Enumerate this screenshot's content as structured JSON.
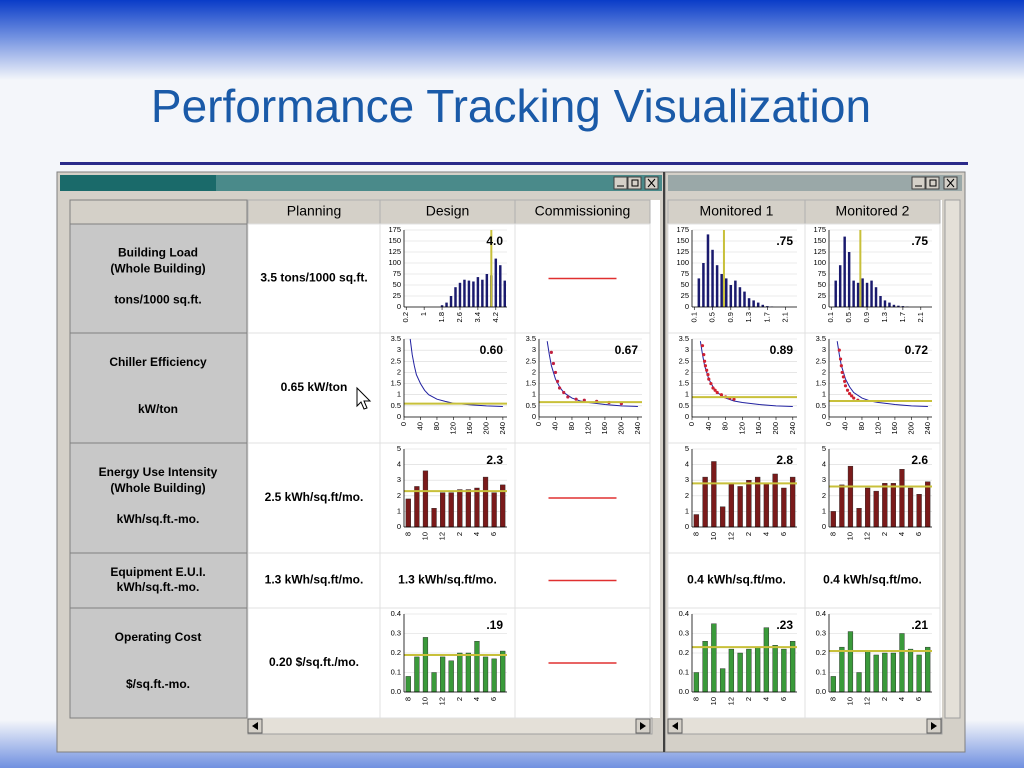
{
  "title": "Performance Tracking Visualization",
  "columns": [
    "Planning",
    "Design",
    "Commissioning",
    "Monitored 1",
    "Monitored 2"
  ],
  "rows": [
    {
      "name": [
        "Building Load",
        "(Whole Building)"
      ],
      "unit": "tons/1000 sq.ft.",
      "cells": [
        "3.5 tons/1000 sq.ft.",
        {
          "type": "bar",
          "color": "#1a1a6e",
          "marker_axis": "x",
          "marker_color": "#c8c03a",
          "xlim": [
            0.1,
            4.7
          ],
          "ylim": [
            0,
            175
          ],
          "yticks": [
            0,
            25,
            50,
            75,
            100,
            125,
            150,
            175
          ],
          "xticks": [
            0.2,
            1,
            1.8,
            2.6,
            3.4,
            4.2
          ],
          "x": [
            0.2,
            0.4,
            0.6,
            0.8,
            1.0,
            1.2,
            1.4,
            1.6,
            1.8,
            2.0,
            2.2,
            2.4,
            2.6,
            2.8,
            3.0,
            3.2,
            3.4,
            3.6,
            3.8,
            4.0,
            4.2,
            4.4,
            4.6
          ],
          "values": [
            0,
            0,
            0,
            0,
            0,
            0,
            0,
            0,
            4,
            10,
            25,
            45,
            55,
            62,
            60,
            58,
            68,
            62,
            75,
            72,
            110,
            95,
            60
          ],
          "marker": {
            "value": 4,
            "label": "4.0"
          }
        },
        null,
        {
          "type": "bar",
          "color": "#1a1a6e",
          "marker_axis": "x",
          "marker_color": "#c8c03a",
          "xlim": [
            0.05,
            2.35
          ],
          "ylim": [
            0,
            175
          ],
          "yticks": [
            0,
            25,
            50,
            75,
            100,
            125,
            150,
            175
          ],
          "xticks": [
            0.1,
            0.5,
            0.9,
            1.3,
            1.7,
            2.1
          ],
          "x": [
            0.1,
            0.2,
            0.3,
            0.4,
            0.5,
            0.6,
            0.7,
            0.8,
            0.9,
            1.0,
            1.1,
            1.2,
            1.3,
            1.4,
            1.5,
            1.6,
            1.7,
            1.8,
            1.9,
            2.0,
            2.1,
            2.2,
            2.3
          ],
          "values": [
            0,
            65,
            100,
            165,
            130,
            95,
            75,
            65,
            50,
            60,
            45,
            35,
            20,
            15,
            10,
            5,
            2,
            1,
            0,
            0,
            0,
            0,
            0
          ],
          "marker": {
            "value": 0.75,
            "label": ".75"
          }
        },
        {
          "type": "bar",
          "color": "#1a1a6e",
          "marker_axis": "x",
          "marker_color": "#c8c03a",
          "xlim": [
            0.05,
            2.35
          ],
          "ylim": [
            0,
            175
          ],
          "yticks": [
            0,
            25,
            50,
            75,
            100,
            125,
            150,
            175
          ],
          "xticks": [
            0.1,
            0.5,
            0.9,
            1.3,
            1.7,
            2.1
          ],
          "x": [
            0.1,
            0.2,
            0.3,
            0.4,
            0.5,
            0.6,
            0.7,
            0.8,
            0.9,
            1.0,
            1.1,
            1.2,
            1.3,
            1.4,
            1.5,
            1.6,
            1.7,
            1.8,
            1.9,
            2.0,
            2.1,
            2.2,
            2.3
          ],
          "values": [
            0,
            60,
            95,
            160,
            125,
            60,
            55,
            65,
            55,
            60,
            45,
            25,
            15,
            10,
            5,
            3,
            2,
            1,
            0,
            0,
            0,
            0,
            0
          ],
          "marker": {
            "value": 0.75,
            "label": ".75"
          }
        }
      ]
    },
    {
      "name": [
        "Chiller Efficiency"
      ],
      "unit": "kW/ton",
      "cells": [
        "0.65 kW/ton",
        {
          "type": "line",
          "color": "#2020a0",
          "marker_axis": "y",
          "marker_color": "#c8c03a",
          "xlim": [
            0,
            250
          ],
          "ylim": [
            0,
            3.5
          ],
          "yticks": [
            0,
            0.5,
            1,
            1.5,
            2,
            2.5,
            3,
            3.5
          ],
          "xticks": [
            0,
            40,
            80,
            120,
            160,
            200,
            240
          ],
          "x": [
            15,
            20,
            25,
            30,
            40,
            50,
            60,
            80,
            100,
            120,
            160,
            200,
            240
          ],
          "values": [
            3.5,
            2.8,
            2.3,
            1.9,
            1.5,
            1.2,
            1.0,
            0.8,
            0.7,
            0.62,
            0.55,
            0.5,
            0.47
          ],
          "marker": {
            "value": 0.6,
            "label": "0.60"
          }
        },
        {
          "type": "line",
          "color": "#2020a0",
          "points_color": "#c02040",
          "marker_axis": "y",
          "marker_color": "#c8c03a",
          "xlim": [
            0,
            250
          ],
          "ylim": [
            0,
            3.5
          ],
          "yticks": [
            0,
            0.5,
            1,
            1.5,
            2,
            2.5,
            3,
            3.5
          ],
          "xticks": [
            0,
            40,
            80,
            120,
            160,
            200,
            240
          ],
          "x": [
            20,
            25,
            30,
            40,
            50,
            60,
            80,
            100,
            120,
            160,
            200,
            240
          ],
          "values": [
            3.4,
            2.8,
            2.3,
            1.7,
            1.35,
            1.1,
            0.85,
            0.72,
            0.65,
            0.56,
            0.5,
            0.47
          ],
          "points_x": [
            30,
            35,
            40,
            45,
            50,
            60,
            70,
            90,
            110,
            140,
            170,
            200
          ],
          "points_y": [
            2.9,
            2.4,
            2.0,
            1.6,
            1.3,
            1.1,
            0.9,
            0.8,
            0.75,
            0.7,
            0.65,
            0.6
          ],
          "marker": 0.67
        },
        {
          "type": "line",
          "color": "#2020a0",
          "points_color": "#d02030",
          "marker_axis": "y",
          "marker_color": "#c8c03a",
          "xlim": [
            0,
            250
          ],
          "ylim": [
            0,
            3.5
          ],
          "yticks": [
            0,
            0.5,
            1,
            1.5,
            2,
            2.5,
            3,
            3.5
          ],
          "xticks": [
            0,
            40,
            80,
            120,
            160,
            200,
            240
          ],
          "x": [
            20,
            25,
            30,
            40,
            50,
            60,
            80,
            100,
            120,
            160,
            200,
            240
          ],
          "values": [
            3.4,
            2.8,
            2.3,
            1.7,
            1.35,
            1.1,
            0.85,
            0.72,
            0.65,
            0.56,
            0.5,
            0.47
          ],
          "points_x": [
            25,
            28,
            30,
            32,
            35,
            38,
            40,
            45,
            50,
            55,
            60,
            70,
            80,
            90,
            100
          ],
          "points_y": [
            3.2,
            2.8,
            2.5,
            2.3,
            2.1,
            1.9,
            1.7,
            1.5,
            1.3,
            1.2,
            1.1,
            1.0,
            0.9,
            0.85,
            0.8
          ],
          "marker": 0.89
        },
        {
          "type": "line",
          "color": "#2020a0",
          "points_color": "#d02030",
          "marker_axis": "y",
          "marker_color": "#c8c03a",
          "xlim": [
            0,
            250
          ],
          "ylim": [
            0,
            3.5
          ],
          "yticks": [
            0,
            0.5,
            1,
            1.5,
            2,
            2.5,
            3,
            3.5
          ],
          "xticks": [
            0,
            40,
            80,
            120,
            160,
            200,
            240
          ],
          "x": [
            20,
            25,
            30,
            40,
            50,
            60,
            80,
            100,
            120,
            160,
            200,
            240
          ],
          "values": [
            3.4,
            2.8,
            2.3,
            1.7,
            1.35,
            1.1,
            0.85,
            0.72,
            0.65,
            0.56,
            0.5,
            0.47
          ],
          "points_x": [
            25,
            28,
            30,
            32,
            35,
            38,
            40,
            45,
            50,
            55,
            60,
            70
          ],
          "points_y": [
            3.0,
            2.6,
            2.3,
            2.0,
            1.8,
            1.6,
            1.4,
            1.2,
            1.05,
            0.95,
            0.85,
            0.75
          ],
          "marker": 0.72
        }
      ]
    },
    {
      "name": [
        "Energy Use Intensity",
        "(Whole Building)"
      ],
      "unit": "kWh/sq.ft.-mo.",
      "cells": [
        "2.5 kWh/sq.ft/mo.",
        {
          "type": "bar",
          "color": "#7a1a1a",
          "marker_axis": "y",
          "marker_color": "#c8c03a",
          "ylim": [
            0,
            5
          ],
          "yticks": [
            0,
            1,
            2,
            3,
            4,
            5
          ],
          "categories": [
            "8",
            null,
            "10",
            null,
            "12",
            null,
            "2",
            null,
            "4",
            null,
            "6",
            null
          ],
          "values": [
            1.8,
            2.6,
            3.6,
            1.2,
            2.2,
            2.2,
            2.4,
            2.4,
            2.5,
            3.2,
            2.2,
            2.7
          ],
          "marker": 2.3
        },
        null,
        {
          "type": "bar",
          "color": "#7a1a1a",
          "marker_axis": "y",
          "marker_color": "#c8c03a",
          "ylim": [
            0,
            5
          ],
          "yticks": [
            0,
            1,
            2,
            3,
            4,
            5
          ],
          "categories": [
            "8",
            null,
            "10",
            null,
            "12",
            null,
            "2",
            null,
            "4",
            null,
            "6",
            null
          ],
          "values": [
            0.8,
            3.2,
            4.2,
            1.3,
            2.8,
            2.6,
            3.0,
            3.2,
            2.8,
            3.4,
            2.5,
            3.2
          ],
          "marker": 2.8
        },
        {
          "type": "bar",
          "color": "#7a1a1a",
          "marker_axis": "y",
          "marker_color": "#c8c03a",
          "ylim": [
            0,
            5
          ],
          "yticks": [
            0,
            1,
            2,
            3,
            4,
            5
          ],
          "categories": [
            "8",
            null,
            "10",
            null,
            "12",
            null,
            "2",
            null,
            "4",
            null,
            "6",
            null
          ],
          "values": [
            1.0,
            2.7,
            3.9,
            1.2,
            2.5,
            2.3,
            2.8,
            2.8,
            3.7,
            2.5,
            2.1,
            2.9
          ],
          "marker": 2.6
        }
      ]
    },
    {
      "name": [
        "Equipment E.U.I.",
        "kWh/sq.ft.-mo."
      ],
      "cells": [
        "1.3 kWh/sq.ft/mo.",
        "1.3 kWh/sq.ft/mo.",
        null,
        "0.4 kWh/sq.ft/mo.",
        "0.4 kWh/sq.ft/mo."
      ]
    },
    {
      "name": [
        "Operating Cost"
      ],
      "unit": "$/sq.ft.-mo.",
      "cells": [
        "0.20 $/sq.ft./mo.",
        {
          "type": "bar",
          "color": "#3a9a3a",
          "marker_axis": "y",
          "marker_color": "#c8c03a",
          "ylim": [
            0,
            0.4
          ],
          "yticks": [
            {
              "value": 0,
              "label": "0.0"
            },
            0.1,
            0.2,
            0.3,
            0.4
          ],
          "categories": [
            "8",
            null,
            "10",
            null,
            "12",
            null,
            "2",
            null,
            "4",
            null,
            "6",
            null
          ],
          "values": [
            0.08,
            0.18,
            0.28,
            0.1,
            0.18,
            0.16,
            0.2,
            0.2,
            0.26,
            0.18,
            0.17,
            0.21
          ],
          "marker": {
            "value": 0.19,
            "label": ".19"
          }
        },
        null,
        {
          "type": "bar",
          "color": "#3a9a3a",
          "marker_axis": "y",
          "marker_color": "#c8c03a",
          "ylim": [
            0,
            0.4
          ],
          "yticks": [
            {
              "value": 0,
              "label": "0.0"
            },
            0.1,
            0.2,
            0.3,
            0.4
          ],
          "categories": [
            "8",
            null,
            "10",
            null,
            "12",
            null,
            "2",
            null,
            "4",
            null,
            "6",
            null
          ],
          "values": [
            0.1,
            0.26,
            0.35,
            0.12,
            0.22,
            0.2,
            0.22,
            0.23,
            0.33,
            0.24,
            0.22,
            0.26
          ],
          "marker": {
            "value": 0.23,
            "label": ".23"
          }
        },
        {
          "type": "bar",
          "color": "#3a9a3a",
          "marker_axis": "y",
          "marker_color": "#c8c03a",
          "ylim": [
            0,
            0.4
          ],
          "yticks": [
            {
              "value": 0,
              "label": "0.0"
            },
            0.1,
            0.2,
            0.3,
            0.4
          ],
          "categories": [
            "8",
            null,
            "10",
            null,
            "12",
            null,
            "2",
            null,
            "4",
            null,
            "6",
            null
          ],
          "values": [
            0.08,
            0.23,
            0.31,
            0.1,
            0.21,
            0.19,
            0.2,
            0.2,
            0.3,
            0.22,
            0.19,
            0.23
          ],
          "marker": {
            "value": 0.21,
            "label": ".21"
          }
        }
      ]
    }
  ]
}
